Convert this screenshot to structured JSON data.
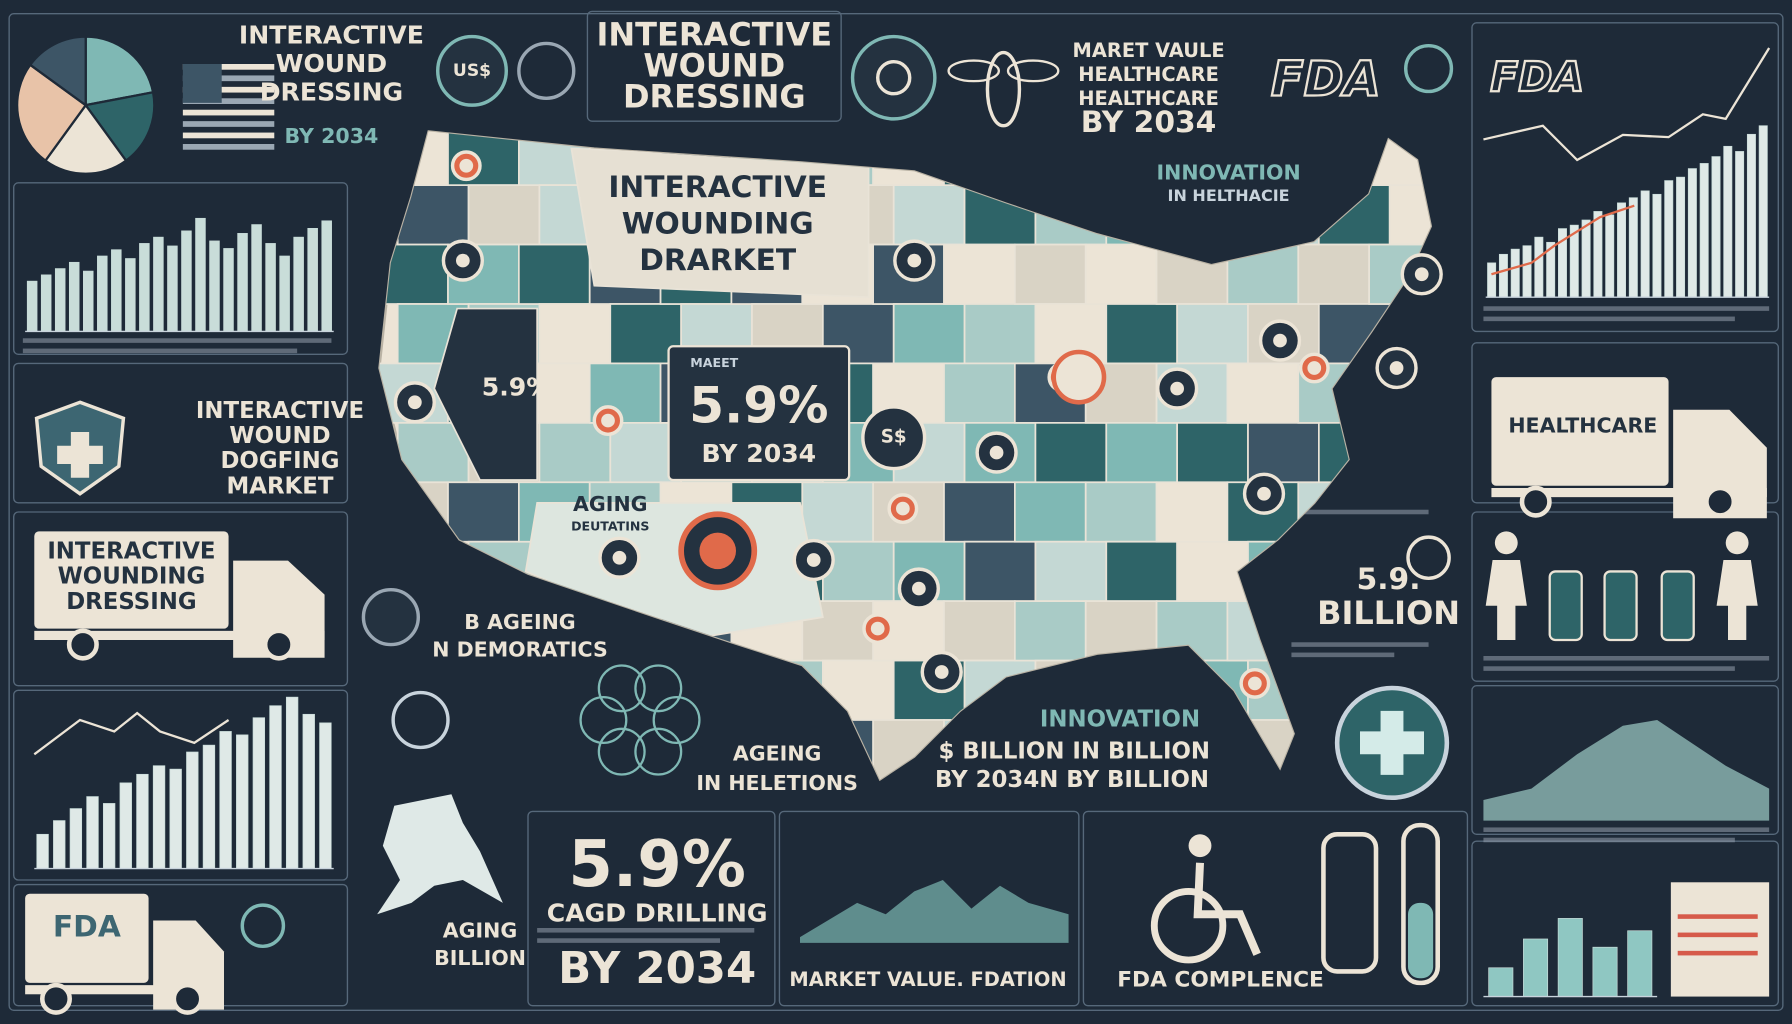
{
  "header": {
    "left_title": [
      "INTERACTIVE",
      "WOUND",
      "DRESSING"
    ],
    "left_year": "BY 2034",
    "badge": "US$",
    "center_title": [
      "INTERACTIVE",
      "WOUND",
      "DRESSING"
    ],
    "market_value": [
      "MARET VAULE",
      "HEALTHCARE",
      "HEALTHCARE",
      "BY 2034"
    ],
    "fda_logo": "FDA",
    "right_fda": "FDA"
  },
  "map": {
    "title": [
      "INTERACTIVE",
      "WOUNDING",
      "DRARKET"
    ],
    "innovation": [
      "INNOVATION",
      "IN HELTHACIE"
    ],
    "side_rate": "5.9%",
    "box_small": "MAEET",
    "box_rate": "5.9%",
    "box_year": "BY 2034",
    "dollar_pin": "S$",
    "aging": [
      "AGING",
      "DEUTATINS"
    ]
  },
  "left": {
    "market": [
      "INTERACTIVE",
      "WOUND",
      "DOGFING",
      "MARKET"
    ],
    "truck": [
      "INTERACTIVE",
      "WOUNDING",
      "DRESSING"
    ],
    "ageing": [
      "B AGEING",
      "N DEMORATICS"
    ],
    "truck_fda": "FDA",
    "aging_billion": [
      "AGING",
      "BILLION"
    ]
  },
  "center": {
    "ageing": [
      "AGEING",
      "IN HELETIONS"
    ],
    "innovation": [
      "INNOVATION",
      "$ BILLION IN BILLION",
      "BY 2034N BY BILLION"
    ],
    "cagr_rate": "5.9%",
    "cagr_label": "CAGD DRILLING",
    "cagr_year": "BY 2034",
    "market_value": "MARKET VALUE. FDATION",
    "compliance": "FDA COMPLENCE"
  },
  "right": {
    "billion": [
      "5.9.",
      "BILLION"
    ],
    "truck": "HEALTHCARE"
  },
  "charts": {
    "pie": [
      22,
      18,
      20,
      25,
      15
    ],
    "left_top": [
      40,
      45,
      50,
      55,
      48,
      60,
      65,
      58,
      70,
      75,
      68,
      80,
      90,
      72,
      66,
      78,
      85,
      70,
      60,
      75,
      82,
      88
    ],
    "left_bottom": [
      20,
      28,
      35,
      42,
      38,
      50,
      55,
      60,
      58,
      68,
      72,
      80,
      78,
      88,
      95,
      100,
      90,
      85
    ],
    "right_top": [
      20,
      25,
      28,
      30,
      35,
      32,
      40,
      42,
      45,
      50,
      48,
      55,
      58,
      62,
      60,
      68,
      70,
      75,
      78,
      82,
      88,
      85,
      95,
      100
    ],
    "right_bottom": [
      35,
      70,
      95,
      60,
      80
    ]
  }
}
